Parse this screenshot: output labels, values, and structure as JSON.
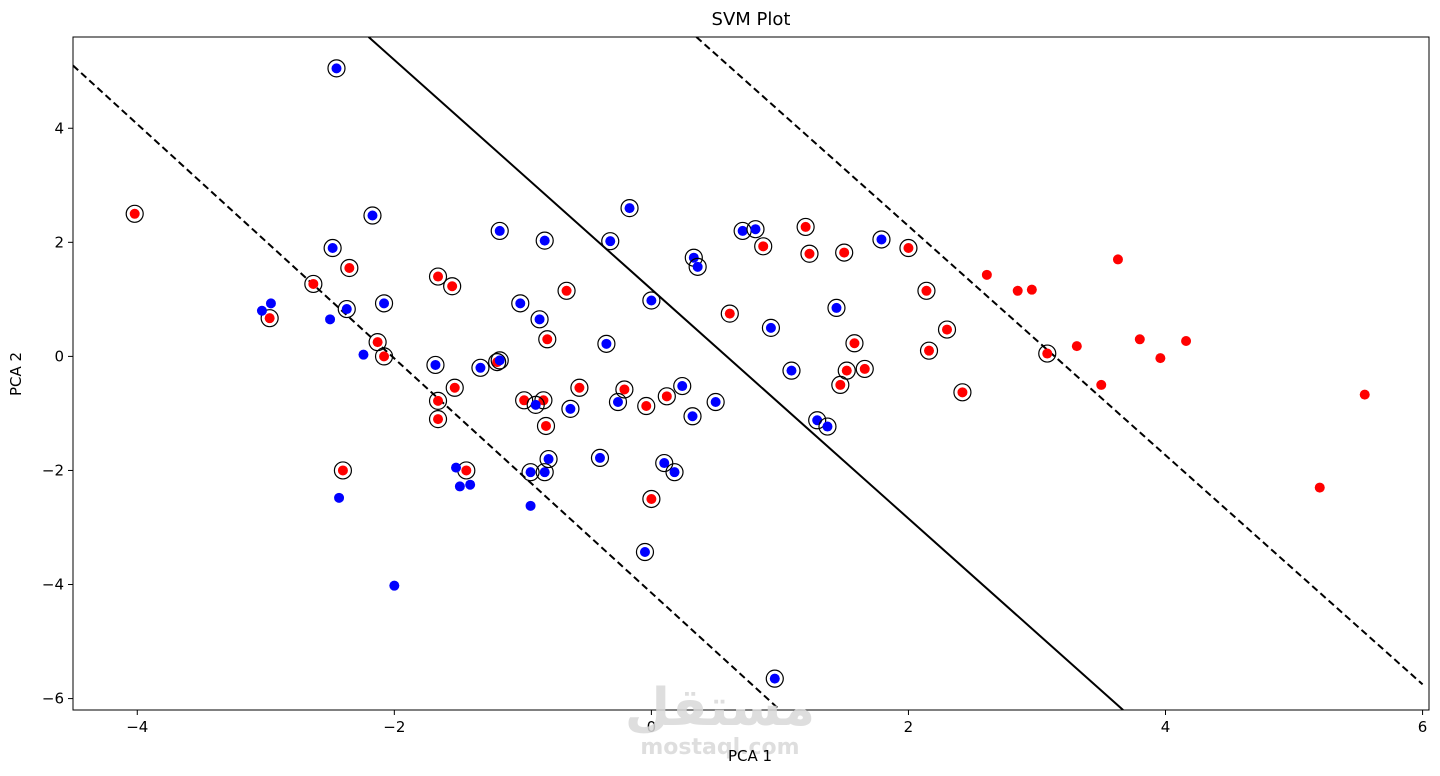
{
  "chart_data": {
    "type": "scatter",
    "title": "SVM Plot",
    "xlabel": "PCA 1",
    "ylabel": "PCA 2",
    "xlim": [
      -4.5,
      6.05
    ],
    "ylim": [
      -6.2,
      5.6
    ],
    "x_ticks": [
      -4,
      -2,
      0,
      2,
      4,
      6
    ],
    "y_ticks": [
      -6,
      -4,
      -2,
      0,
      2,
      4
    ],
    "x_tick_labels": [
      "−4",
      "−2",
      "0",
      "2",
      "4",
      "6"
    ],
    "y_tick_labels": [
      "−6",
      "−4",
      "−2",
      "0",
      "2",
      "4"
    ],
    "grid": false,
    "colors": {
      "class_red": "#ff0000",
      "class_blue": "#0000ff",
      "line": "#000000"
    },
    "decision_lines": [
      {
        "style": "dashed",
        "points": [
          [
            -4.5,
            5.1
          ],
          [
            1.0,
            -6.2
          ]
        ]
      },
      {
        "style": "solid",
        "points": [
          [
            -2.2,
            5.6
          ],
          [
            3.67,
            -6.2
          ]
        ]
      },
      {
        "style": "dashed",
        "points": [
          [
            0.35,
            5.6
          ],
          [
            6.0,
            -5.75
          ]
        ]
      }
    ],
    "series": [
      {
        "color": "red",
        "points": [
          [
            -4.02,
            2.5,
            1
          ],
          [
            -2.63,
            1.27,
            1
          ],
          [
            -2.97,
            0.67,
            1
          ],
          [
            -2.35,
            1.55,
            1
          ],
          [
            -2.13,
            0.25,
            1
          ],
          [
            -2.08,
            0.0,
            1
          ],
          [
            -2.4,
            -2.0,
            1
          ],
          [
            -1.66,
            1.4,
            1
          ],
          [
            -1.55,
            1.23,
            1
          ],
          [
            -1.66,
            -0.78,
            1
          ],
          [
            -1.66,
            -1.1,
            1
          ],
          [
            -1.53,
            -0.55,
            1
          ],
          [
            -1.44,
            -2.0,
            1
          ],
          [
            -1.2,
            -0.1,
            1
          ],
          [
            -0.99,
            -0.77,
            1
          ],
          [
            -0.84,
            -0.77,
            1
          ],
          [
            -0.82,
            -1.22,
            1
          ],
          [
            -0.81,
            0.3,
            1
          ],
          [
            -0.66,
            1.15,
            1
          ],
          [
            -0.56,
            -0.55,
            1
          ],
          [
            -0.21,
            -0.58,
            1
          ],
          [
            -0.04,
            -0.87,
            1
          ],
          [
            0.0,
            -2.5,
            1
          ],
          [
            0.12,
            -0.7,
            1
          ],
          [
            0.61,
            0.75,
            1
          ],
          [
            0.87,
            1.93,
            1
          ],
          [
            1.2,
            2.27,
            1
          ],
          [
            1.23,
            1.8,
            1
          ],
          [
            1.47,
            -0.5,
            1
          ],
          [
            1.5,
            1.82,
            1
          ],
          [
            1.52,
            -0.25,
            1
          ],
          [
            1.58,
            0.23,
            1
          ],
          [
            1.66,
            -0.22,
            1
          ],
          [
            2.0,
            1.9,
            1
          ],
          [
            2.14,
            1.15,
            1
          ],
          [
            2.16,
            0.1,
            1
          ],
          [
            2.3,
            0.47,
            1
          ],
          [
            2.42,
            -0.63,
            1
          ],
          [
            3.08,
            0.05,
            1
          ],
          [
            2.61,
            1.43,
            0
          ],
          [
            2.85,
            1.15,
            0
          ],
          [
            2.96,
            1.17,
            0
          ],
          [
            3.31,
            0.18,
            0
          ],
          [
            3.5,
            -0.5,
            0
          ],
          [
            3.63,
            1.7,
            0
          ],
          [
            3.8,
            0.3,
            0
          ],
          [
            3.96,
            -0.03,
            0
          ],
          [
            4.16,
            0.27,
            0
          ],
          [
            5.2,
            -2.3,
            0
          ],
          [
            5.55,
            -0.67,
            0
          ]
        ]
      },
      {
        "color": "blue",
        "points": [
          [
            -2.45,
            5.05,
            1
          ],
          [
            -2.17,
            2.47,
            1
          ],
          [
            -2.48,
            1.9,
            1
          ],
          [
            -2.37,
            0.83,
            1
          ],
          [
            -2.08,
            0.93,
            1
          ],
          [
            -1.68,
            -0.15,
            1
          ],
          [
            -1.33,
            -0.2,
            1
          ],
          [
            -1.18,
            -0.07,
            1
          ],
          [
            -1.18,
            2.2,
            1
          ],
          [
            -1.02,
            0.93,
            1
          ],
          [
            -0.9,
            -0.85,
            1
          ],
          [
            -0.87,
            0.65,
            1
          ],
          [
            -0.83,
            2.03,
            1
          ],
          [
            -0.94,
            -2.03,
            1
          ],
          [
            -0.83,
            -2.03,
            1
          ],
          [
            -0.8,
            -1.8,
            1
          ],
          [
            -0.63,
            -0.92,
            1
          ],
          [
            -0.4,
            -1.78,
            1
          ],
          [
            -0.35,
            0.22,
            1
          ],
          [
            -0.32,
            2.02,
            1
          ],
          [
            -0.26,
            -0.8,
            1
          ],
          [
            -0.17,
            2.6,
            1
          ],
          [
            -0.05,
            -3.43,
            1
          ],
          [
            0.0,
            0.98,
            1
          ],
          [
            0.1,
            -1.87,
            1
          ],
          [
            0.18,
            -2.03,
            1
          ],
          [
            0.24,
            -0.52,
            1
          ],
          [
            0.32,
            -1.05,
            1
          ],
          [
            0.33,
            1.73,
            1
          ],
          [
            0.36,
            1.57,
            1
          ],
          [
            0.5,
            -0.8,
            1
          ],
          [
            0.71,
            2.2,
            1
          ],
          [
            0.81,
            2.23,
            1
          ],
          [
            0.93,
            0.5,
            1
          ],
          [
            0.96,
            -5.65,
            1
          ],
          [
            1.09,
            -0.25,
            1
          ],
          [
            1.29,
            -1.12,
            1
          ],
          [
            1.37,
            -1.23,
            1
          ],
          [
            1.44,
            0.85,
            1
          ],
          [
            1.79,
            2.05,
            1
          ],
          [
            -3.03,
            0.8,
            0
          ],
          [
            -2.96,
            0.93,
            0
          ],
          [
            -2.5,
            0.65,
            0
          ],
          [
            -2.24,
            0.03,
            0
          ],
          [
            -2.43,
            -2.48,
            0
          ],
          [
            -1.52,
            -1.95,
            0
          ],
          [
            -1.49,
            -2.28,
            0
          ],
          [
            -1.41,
            -2.25,
            0
          ],
          [
            -0.94,
            -2.62,
            0
          ],
          [
            -2.0,
            -4.02,
            0
          ]
        ]
      }
    ]
  },
  "watermark": {
    "logo_text": "مستقل",
    "site_text": "mostaql.com"
  }
}
